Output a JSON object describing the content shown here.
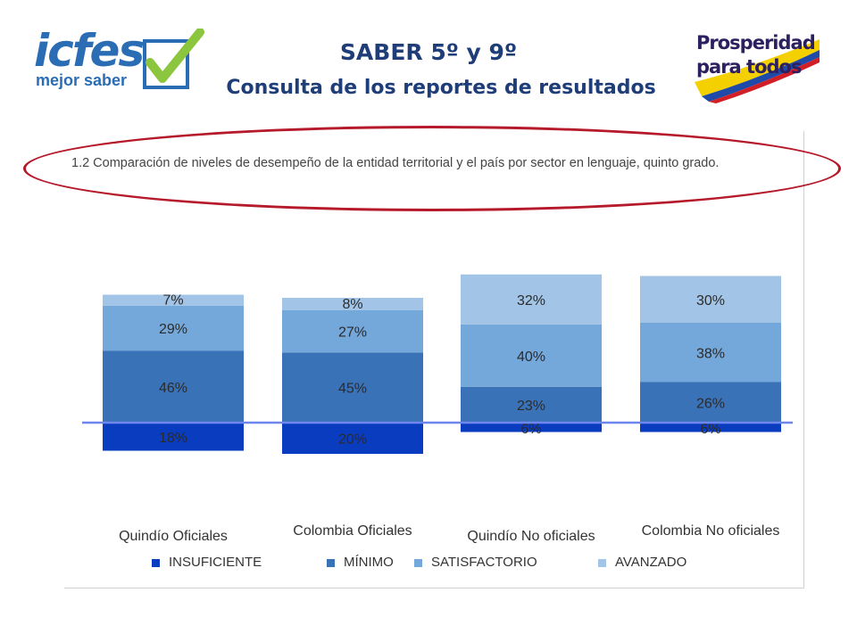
{
  "header": {
    "title": "SABER 5º y 9º",
    "subtitle": "Consulta de los reportes de resultados"
  },
  "logo_left": {
    "brand": "icfes",
    "tagline": "mejor saber"
  },
  "logo_right": {
    "line1": "Prosperidad",
    "line2": "para todos"
  },
  "colors": {
    "title": "#1f3d78",
    "highlight_oval": "#b5192a",
    "reference_line": "#6f86ee",
    "insuficiente": "#0a3cc0",
    "minimo": "#3a72b8",
    "satisfactorio": "#74a7da",
    "avanzado": "#a2c4e6"
  },
  "chart_data": {
    "type": "bar",
    "stacked": "diverging",
    "title": "1.2 Comparación de niveles de desempeño de la entidad territorial y el país por sector en lenguaje, quinto grado.",
    "categories": [
      "Quindío Oficiales",
      "Colombia Oficiales",
      "Quindío No oficiales",
      "Colombia No oficiales"
    ],
    "series": [
      {
        "name": "INSUFICIENTE",
        "values": [
          18,
          20,
          6,
          6
        ]
      },
      {
        "name": "MÍNIMO",
        "values": [
          46,
          45,
          23,
          26
        ]
      },
      {
        "name": "SATISFACTORIO",
        "values": [
          29,
          27,
          40,
          38
        ]
      },
      {
        "name": "AVANZADO",
        "values": [
          7,
          8,
          32,
          30
        ]
      }
    ],
    "value_labels": [
      [
        "18%",
        "46%",
        "29%",
        "7%"
      ],
      [
        "20%",
        "45%",
        "27%",
        "8%"
      ],
      [
        "6%",
        "23%",
        "40%",
        "32%"
      ],
      [
        "6%",
        "26%",
        "38%",
        "30%"
      ]
    ],
    "legend_position": "bottom",
    "grid": false
  }
}
